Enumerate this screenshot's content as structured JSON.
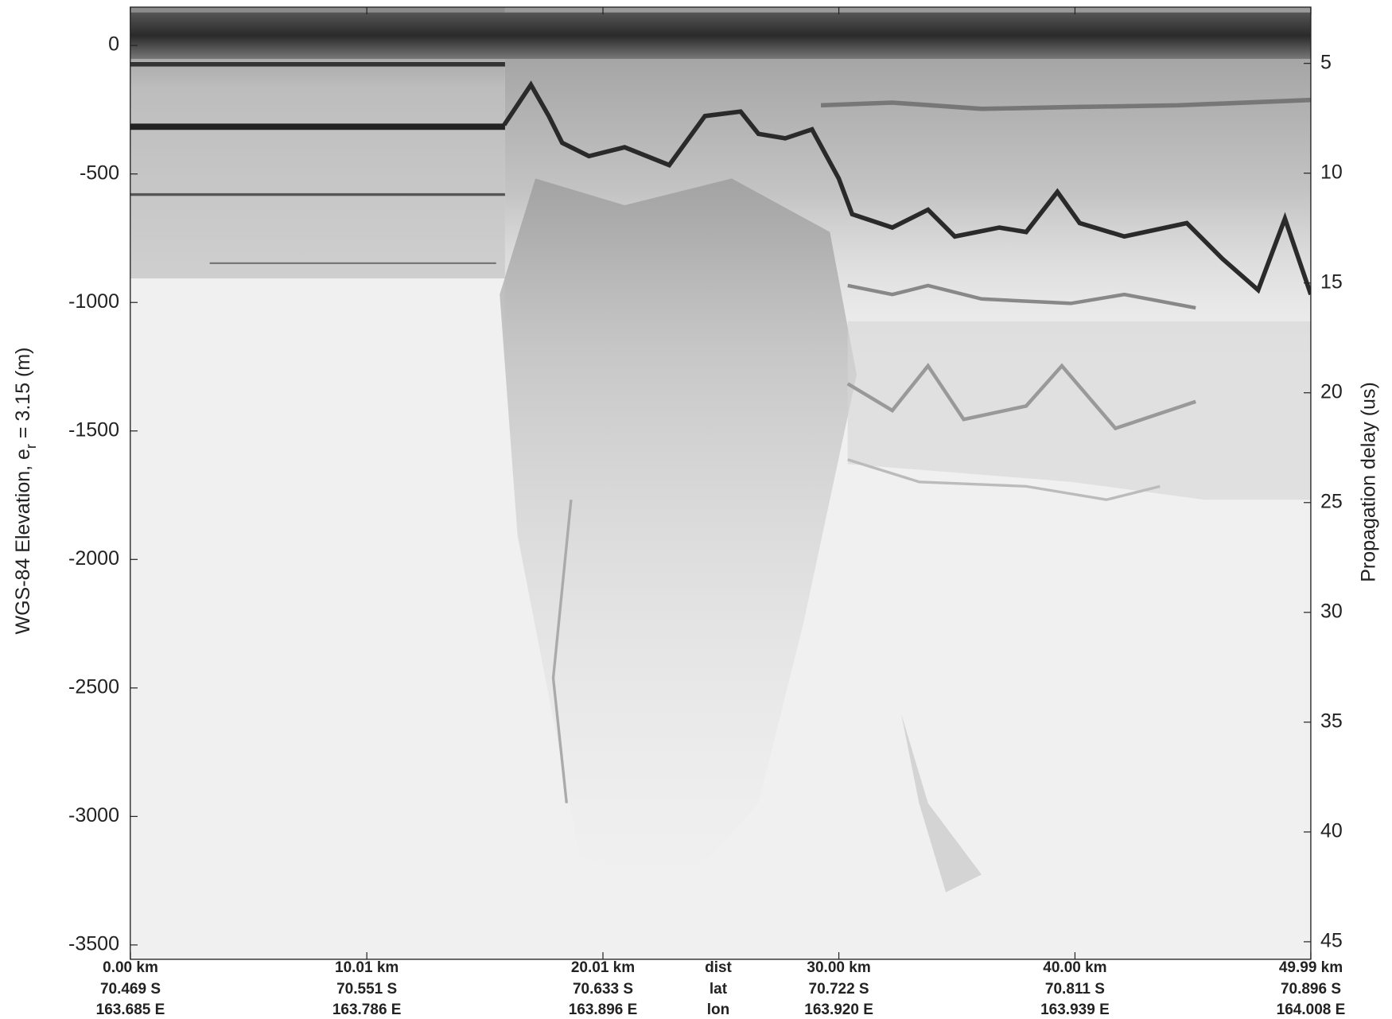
{
  "chart_data": {
    "type": "radargram",
    "ylabel": [
      "WGS-84 Elevation, e",
      "r",
      " = 3.15 (m)"
    ],
    "y2label": "Propagation delay (us)",
    "ylim": [
      -3556,
      149
    ],
    "yticks": [
      0,
      -500,
      -1000,
      -1500,
      -2000,
      -2500,
      -3000,
      -3500
    ],
    "y2lim": [
      2.44,
      45.8
    ],
    "y2ticks": [
      5,
      10,
      15,
      20,
      25,
      30,
      35,
      40,
      45
    ],
    "xlim": [
      0,
      49.99
    ],
    "xticks": [
      {
        "value": 0,
        "label": "0.00 km"
      },
      {
        "value": 10.01,
        "label": "10.01 km"
      },
      {
        "value": 20.01,
        "label": "20.01 km"
      },
      {
        "value": 30.0,
        "label": "30.00 km"
      },
      {
        "value": 40.0,
        "label": "40.00 km"
      },
      {
        "value": 49.99,
        "label": "49.99 km"
      }
    ],
    "x_row_labels": [
      "dist",
      "lat",
      "lon"
    ],
    "lat_labels": [
      "70.469 S",
      "70.551 S",
      "70.633 S",
      "70.722 S",
      "70.811 S",
      "70.896 S"
    ],
    "lon_labels": [
      "163.685 E",
      "163.786 E",
      "163.896 E",
      "163.920 E",
      "163.939 E",
      "164.008 E"
    ]
  }
}
